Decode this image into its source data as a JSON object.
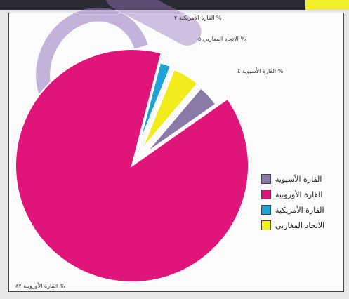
{
  "header": {
    "highlight_text": ""
  },
  "chart_data": {
    "type": "pie",
    "title": "",
    "slices": [
      {
        "label": "القارة الأسيوية",
        "value": 4,
        "color": "#8a7aa8"
      },
      {
        "label": "القارة الأوروبية",
        "value": 87,
        "color": "#e0157a"
      },
      {
        "label": "القارة الأمريكية",
        "value": 2,
        "color": "#1fa3d6"
      },
      {
        "label": "الاتحاد المغاربي",
        "value": 5,
        "color": "#f2ec1c"
      }
    ],
    "annotations": {
      "asia": "القارة الأسيوية ٤ %",
      "europe": "القارة الأوروبية ٨٧ %",
      "america": "القارة الأمريكية ٢ %",
      "maghreb": "الاتحاد المغاربي ٥ %"
    },
    "legend_position": "right"
  }
}
